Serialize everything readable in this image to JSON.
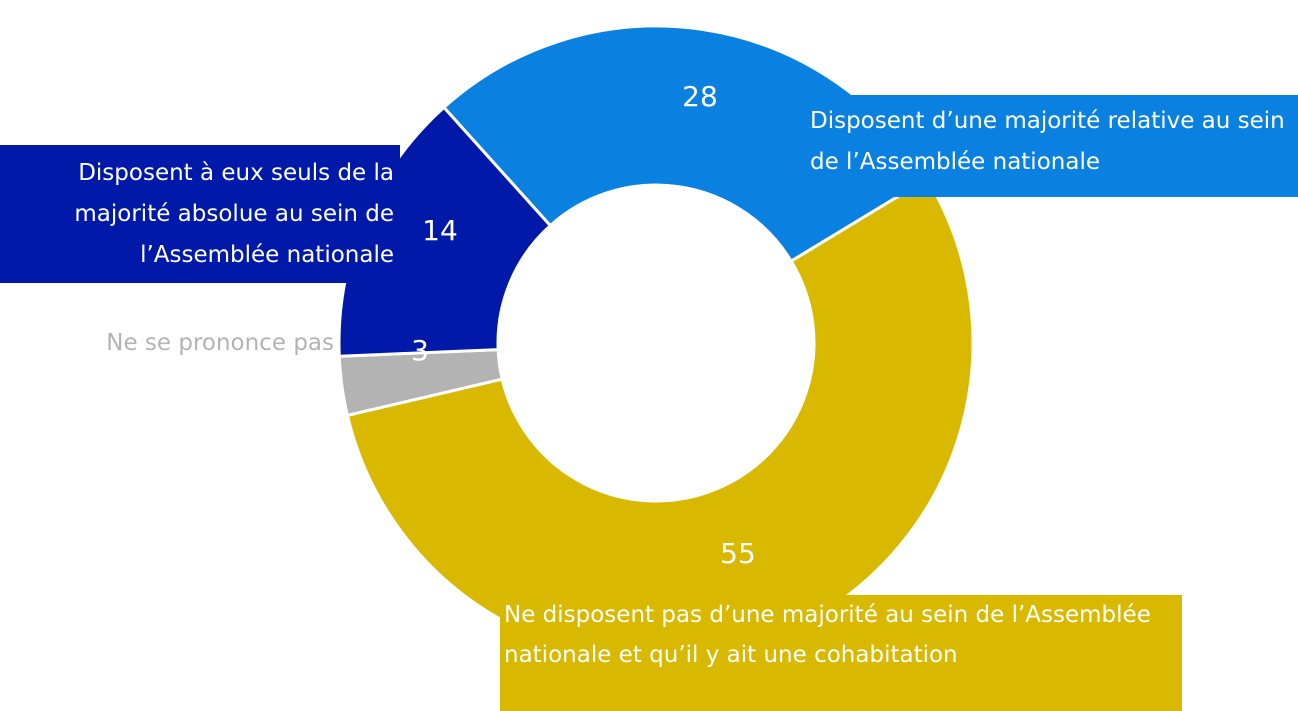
{
  "chart_data": {
    "type": "donut",
    "categories": [
      "Disposent d’une majorité relative au sein de l’Assemblée nationale",
      "Ne disposent pas d’une majorité au sein de l’Assemblée nationale et qu’il y ait une cohabitation",
      "Ne se prononce pas",
      "Disposent à eux seuls de la majorité absolue au sein de l’Assemblée nationale"
    ],
    "values": [
      28,
      55,
      3,
      14
    ],
    "colors": [
      "#0a80e0",
      "#d9b900",
      "#b3b3b3",
      "#0019a8"
    ]
  }
}
